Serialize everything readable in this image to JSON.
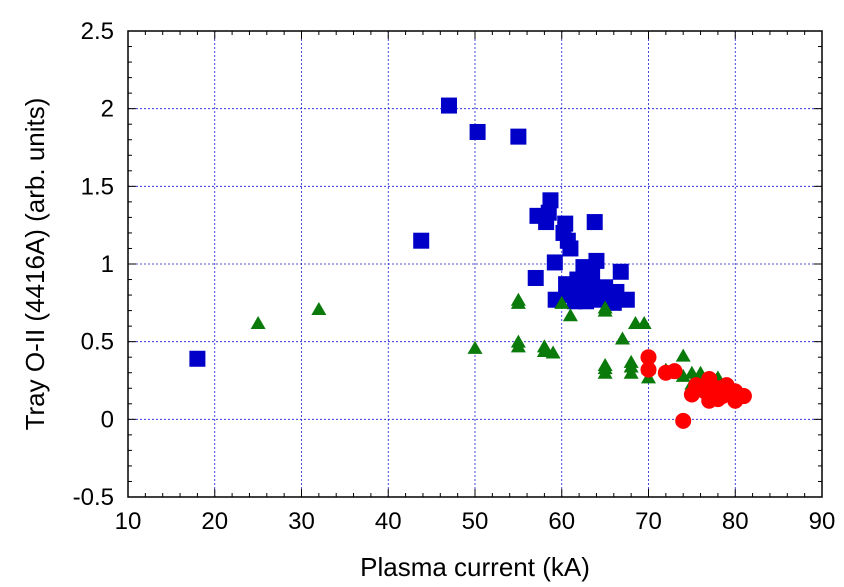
{
  "chart_data": {
    "type": "scatter",
    "xlabel": "Plasma current (kA)",
    "ylabel": "Tray O-II (4416A) (arb. units)",
    "xlim": [
      10,
      90
    ],
    "ylim": [
      -0.5,
      2.5
    ],
    "x_ticks": [
      10,
      20,
      30,
      40,
      50,
      60,
      70,
      80,
      90
    ],
    "y_ticks": [
      -0.5,
      0,
      0.5,
      1,
      1.5,
      2,
      2.5
    ],
    "x_tick_labels": [
      "10",
      "20",
      "30",
      "40",
      "50",
      "60",
      "70",
      "80",
      "90"
    ],
    "y_tick_labels": [
      "-0.5",
      "0",
      "0.5",
      "1",
      "1.5",
      "2",
      "2.5"
    ],
    "grid": true,
    "series": [
      {
        "marker": "square",
        "color": "#0000c8",
        "points": [
          [
            18,
            0.39
          ],
          [
            43.8,
            1.15
          ],
          [
            47,
            2.02
          ],
          [
            50.3,
            1.85
          ],
          [
            55,
            1.82
          ],
          [
            57,
            0.91
          ],
          [
            57.2,
            1.31
          ],
          [
            58.2,
            1.27
          ],
          [
            58.7,
            1.41
          ],
          [
            58.5,
            1.33
          ],
          [
            59.2,
            1.01
          ],
          [
            59.3,
            0.77
          ],
          [
            60.2,
            1.2
          ],
          [
            60.4,
            1.26
          ],
          [
            60.7,
            1.15
          ],
          [
            61.0,
            1.1
          ],
          [
            60.5,
            0.87
          ],
          [
            61.0,
            0.8
          ],
          [
            61.5,
            0.76
          ],
          [
            61.8,
            0.9
          ],
          [
            62.0,
            0.82
          ],
          [
            62.5,
            0.98
          ],
          [
            62.8,
            0.76
          ],
          [
            63.2,
            0.85
          ],
          [
            63.5,
            0.92
          ],
          [
            63.8,
            1.27
          ],
          [
            64.0,
            1.02
          ],
          [
            64.2,
            0.8
          ],
          [
            64.5,
            0.77
          ],
          [
            65.0,
            0.85
          ],
          [
            65.5,
            0.8
          ],
          [
            66.0,
            0.75
          ],
          [
            66.3,
            0.82
          ],
          [
            66.8,
            0.95
          ],
          [
            67.5,
            0.77
          ]
        ]
      },
      {
        "marker": "triangle",
        "color": "#0a7a0a",
        "points": [
          [
            25,
            0.62
          ],
          [
            32,
            0.71
          ],
          [
            50,
            0.46
          ],
          [
            55,
            0.47
          ],
          [
            55,
            0.5
          ],
          [
            55,
            0.75
          ],
          [
            55,
            0.77
          ],
          [
            58,
            0.44
          ],
          [
            58,
            0.47
          ],
          [
            59,
            0.43
          ],
          [
            60,
            0.75
          ],
          [
            61,
            0.67
          ],
          [
            65,
            0.7
          ],
          [
            65,
            0.72
          ],
          [
            65,
            0.3
          ],
          [
            65,
            0.33
          ],
          [
            65,
            0.35
          ],
          [
            67,
            0.52
          ],
          [
            68,
            0.3
          ],
          [
            68,
            0.34
          ],
          [
            68,
            0.37
          ],
          [
            68.5,
            0.62
          ],
          [
            69.5,
            0.62
          ],
          [
            70,
            0.27
          ],
          [
            70,
            0.33
          ],
          [
            72,
            0.32
          ],
          [
            74,
            0.28
          ],
          [
            74,
            0.41
          ],
          [
            75,
            0.23
          ],
          [
            75,
            0.3
          ],
          [
            76,
            0.27
          ],
          [
            76,
            0.3
          ],
          [
            77,
            0.25
          ],
          [
            78,
            0.27
          ],
          [
            78,
            0.22
          ]
        ]
      },
      {
        "marker": "circle",
        "color": "#ff0000",
        "points": [
          [
            70,
            0.4
          ],
          [
            70,
            0.32
          ],
          [
            72,
            0.3
          ],
          [
            73,
            0.31
          ],
          [
            74,
            -0.01
          ],
          [
            75,
            0.16
          ],
          [
            75.5,
            0.22
          ],
          [
            76,
            0.2
          ],
          [
            76.5,
            0.18
          ],
          [
            77,
            0.26
          ],
          [
            77,
            0.12
          ],
          [
            77.5,
            0.18
          ],
          [
            78,
            0.13
          ],
          [
            78,
            0.2
          ],
          [
            78.5,
            0.15
          ],
          [
            79,
            0.22
          ],
          [
            79,
            0.17
          ],
          [
            80,
            0.12
          ],
          [
            80,
            0.18
          ],
          [
            81,
            0.15
          ]
        ]
      }
    ]
  }
}
